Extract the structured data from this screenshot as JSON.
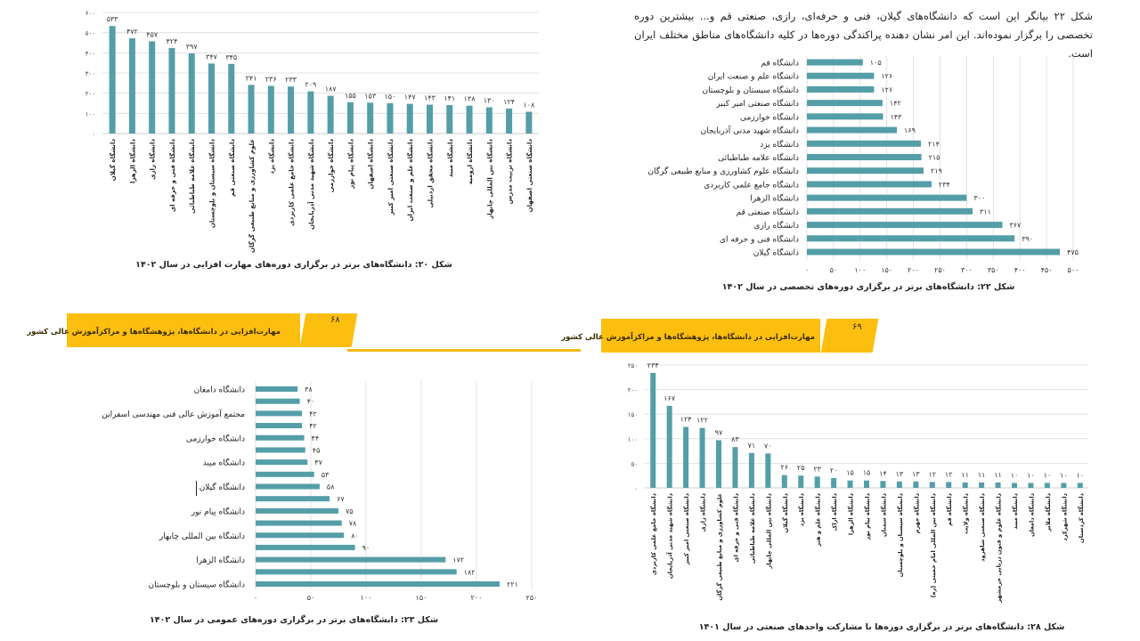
{
  "colors": {
    "bar": "#549ea8",
    "banner": "#fcbf10",
    "grid": "#dcdcdc"
  },
  "intro_paragraph": "شکل ۲۲ بیانگر این است که دانشگاه‌های گیلان، فنی و حرفه‌ای، رازی، صنعتی قم و... بیشترین دوره تخصصی را برگزار نموده‌اند. این امر نشان دهنده پراکندگی دوره‌ها در کلیه دانشگاه‌های مناطق مختلف ایران است.",
  "page_headers": [
    {
      "title": "مهارت‌افزایی در دانشگاه‌ها، پژوهشگاه‌ها و مراکزآموزش عالی کشور",
      "page_number": "۶۸"
    },
    {
      "title": "مهارت‌افزایی در دانشگاه‌ها، پژوهشگاه‌ها و مراکزآموزش عالی کشور",
      "page_number": "۶۹"
    }
  ],
  "chart_data": [
    {
      "type": "bar",
      "orientation": "vertical",
      "title": "شکل ۲۰: دانشگاه‌های برتر در برگزاری دوره‌های مهارت افزایی در سال ۱۴۰۲",
      "ylim": [
        0,
        600
      ],
      "ytick_step": 100,
      "grid": true,
      "categories": [
        "دانشگاه گیلان",
        "دانشگاه الزهرا",
        "دانشگاه رازی",
        "دانشگاه فنی و حرفه ای",
        "دانشگاه علامه طباطبائی",
        "دانشگاه سیستان و بلوچستان",
        "دانشگاه صنعتی قم",
        "علوم کشاورزی و منابع طبیعی گرگان",
        "دانشگاه یزد",
        "دانشگاه جامع علمی کاربردی",
        "دانشگاه شهید مدنی آذربایجان",
        "دانشگاه خوارزمی",
        "دانشگاه پیام نور",
        "دانشگاه اصفهان",
        "دانشگاه صنعتی امیر کبیر",
        "دانشگاه علم و صنعت ایران",
        "دانشگاه محقق اردبیلی",
        "دانشگاه میبد",
        "دانشگاه ارومیه",
        "دانشگاه بین المللی چابهار",
        "دانشگاه تربیت مدرس",
        "دانشگاه صنعتی اصفهان"
      ],
      "values": [
        533,
        472,
        457,
        424,
        397,
        347,
        345,
        241,
        236,
        233,
        209,
        187,
        155,
        153,
        150,
        147,
        143,
        141,
        138,
        130,
        124,
        108
      ]
    },
    {
      "type": "bar",
      "orientation": "horizontal",
      "title": "شکل ۲۲: دانشگاه‌های برتر در برگزاری دوره‌های  تخصصی در سال ۱۴۰۲",
      "xlim": [
        0,
        500
      ],
      "xtick_step": 50,
      "grid": true,
      "categories": [
        "دانشگاه قم",
        "دانشگاه علم و صنعت ایران",
        "دانشگاه سیستان و بلوچستان",
        "دانشگاه صنعتی امیر کبیر",
        "دانشگاه خوارزمی",
        "دانشگاه شهید مدنی آذربایجان",
        "دانشگاه یزد",
        "دانشگاه علامه طباطبائی",
        "دانشگاه علوم کشاورزی و منابع طبیعی گرگان",
        "دانشگاه جامع علمی کاربردی",
        "دانشگاه الزهرا",
        "دانشگاه صنعتی قم",
        "دانشگاه رازی",
        "دانشگاه فنی و حرفه ای",
        "دانشگاه گیلان"
      ],
      "values": [
        105,
        126,
        126,
        142,
        143,
        169,
        214,
        215,
        219,
        234,
        300,
        311,
        367,
        390,
        475
      ]
    },
    {
      "type": "bar",
      "orientation": "horizontal",
      "title": "شکل ۲۳: دانشگاه‌های برتر در برگزاری دوره‌های عمومی در سال ۱۴۰۲",
      "xlim": [
        0,
        250
      ],
      "xtick_step": 50,
      "grid": true,
      "categories": [
        "دانشگاه دامغان",
        "",
        "مجتمع آموزش عالی فنی مهندسی اسفراین",
        "",
        "دانشگاه خوارزمی",
        "",
        "دانشگاه میبد",
        "",
        "دانشگاه گیلان",
        "",
        "دانشگاه پیام نور",
        "",
        "دانشگاه بین المللی چابهار",
        "",
        "دانشگاه الزهرا",
        "",
        "دانشگاه سیستان و بلوچستان"
      ],
      "values": [
        38,
        40,
        42,
        42,
        44,
        45,
        47,
        53,
        58,
        67,
        75,
        78,
        80,
        90,
        172,
        182,
        221
      ]
    },
    {
      "type": "bar",
      "orientation": "vertical",
      "title": "شکل ۲۸: دانشگاه‌های برتر در برگزاری دوره‌ها با مشارکت واحدهای صنعتی در سال ۱۴۰۱",
      "ylim": [
        0,
        250
      ],
      "ytick_step": 50,
      "grid": true,
      "categories": [
        "دانشگاه جامع علمی کاربردی",
        "دانشگاه شهید مدنی آذربایجان",
        "دانشگاه صنعتی امیر کبیر",
        "دانشگاه رازی",
        "علوم کشاورزی و منابع طبیعی گرگان",
        "دانشگاه فنی و حرفه ای",
        "دانشگاه علامه طباطبائی",
        "دانشگاه بین المللی چابهار",
        "دانشگاه گیلان",
        "دانشگاه یزد",
        "دانشگاه علم و هنر",
        "دانشگاه اراک",
        "دانشگاه الزهرا",
        "دانشگاه پیام نور",
        "دانشگاه سمنان",
        "دانشگاه سیستان و بلوچستان",
        "دانشگاه جهرم",
        "دانشگاه بین المللی امام خمینی (ره)",
        "دانشگاه قم",
        "دانشگاه ولایت",
        "دانشگاه صنعتی شاهرود",
        "دانشگاه علوم و فنون دریایی خرمشهر",
        "دانشگاه میبد",
        "دانشگاه دامغان",
        "دانشگاه ملایر",
        "دانشگاه شهرکرد",
        "دانشگاه کردستان"
      ],
      "values": [
        234,
        167,
        124,
        122,
        97,
        83,
        71,
        70,
        26,
        25,
        23,
        20,
        15,
        15,
        14,
        13,
        13,
        12,
        12,
        11,
        11,
        11,
        10,
        10,
        10,
        10,
        10
      ]
    }
  ]
}
